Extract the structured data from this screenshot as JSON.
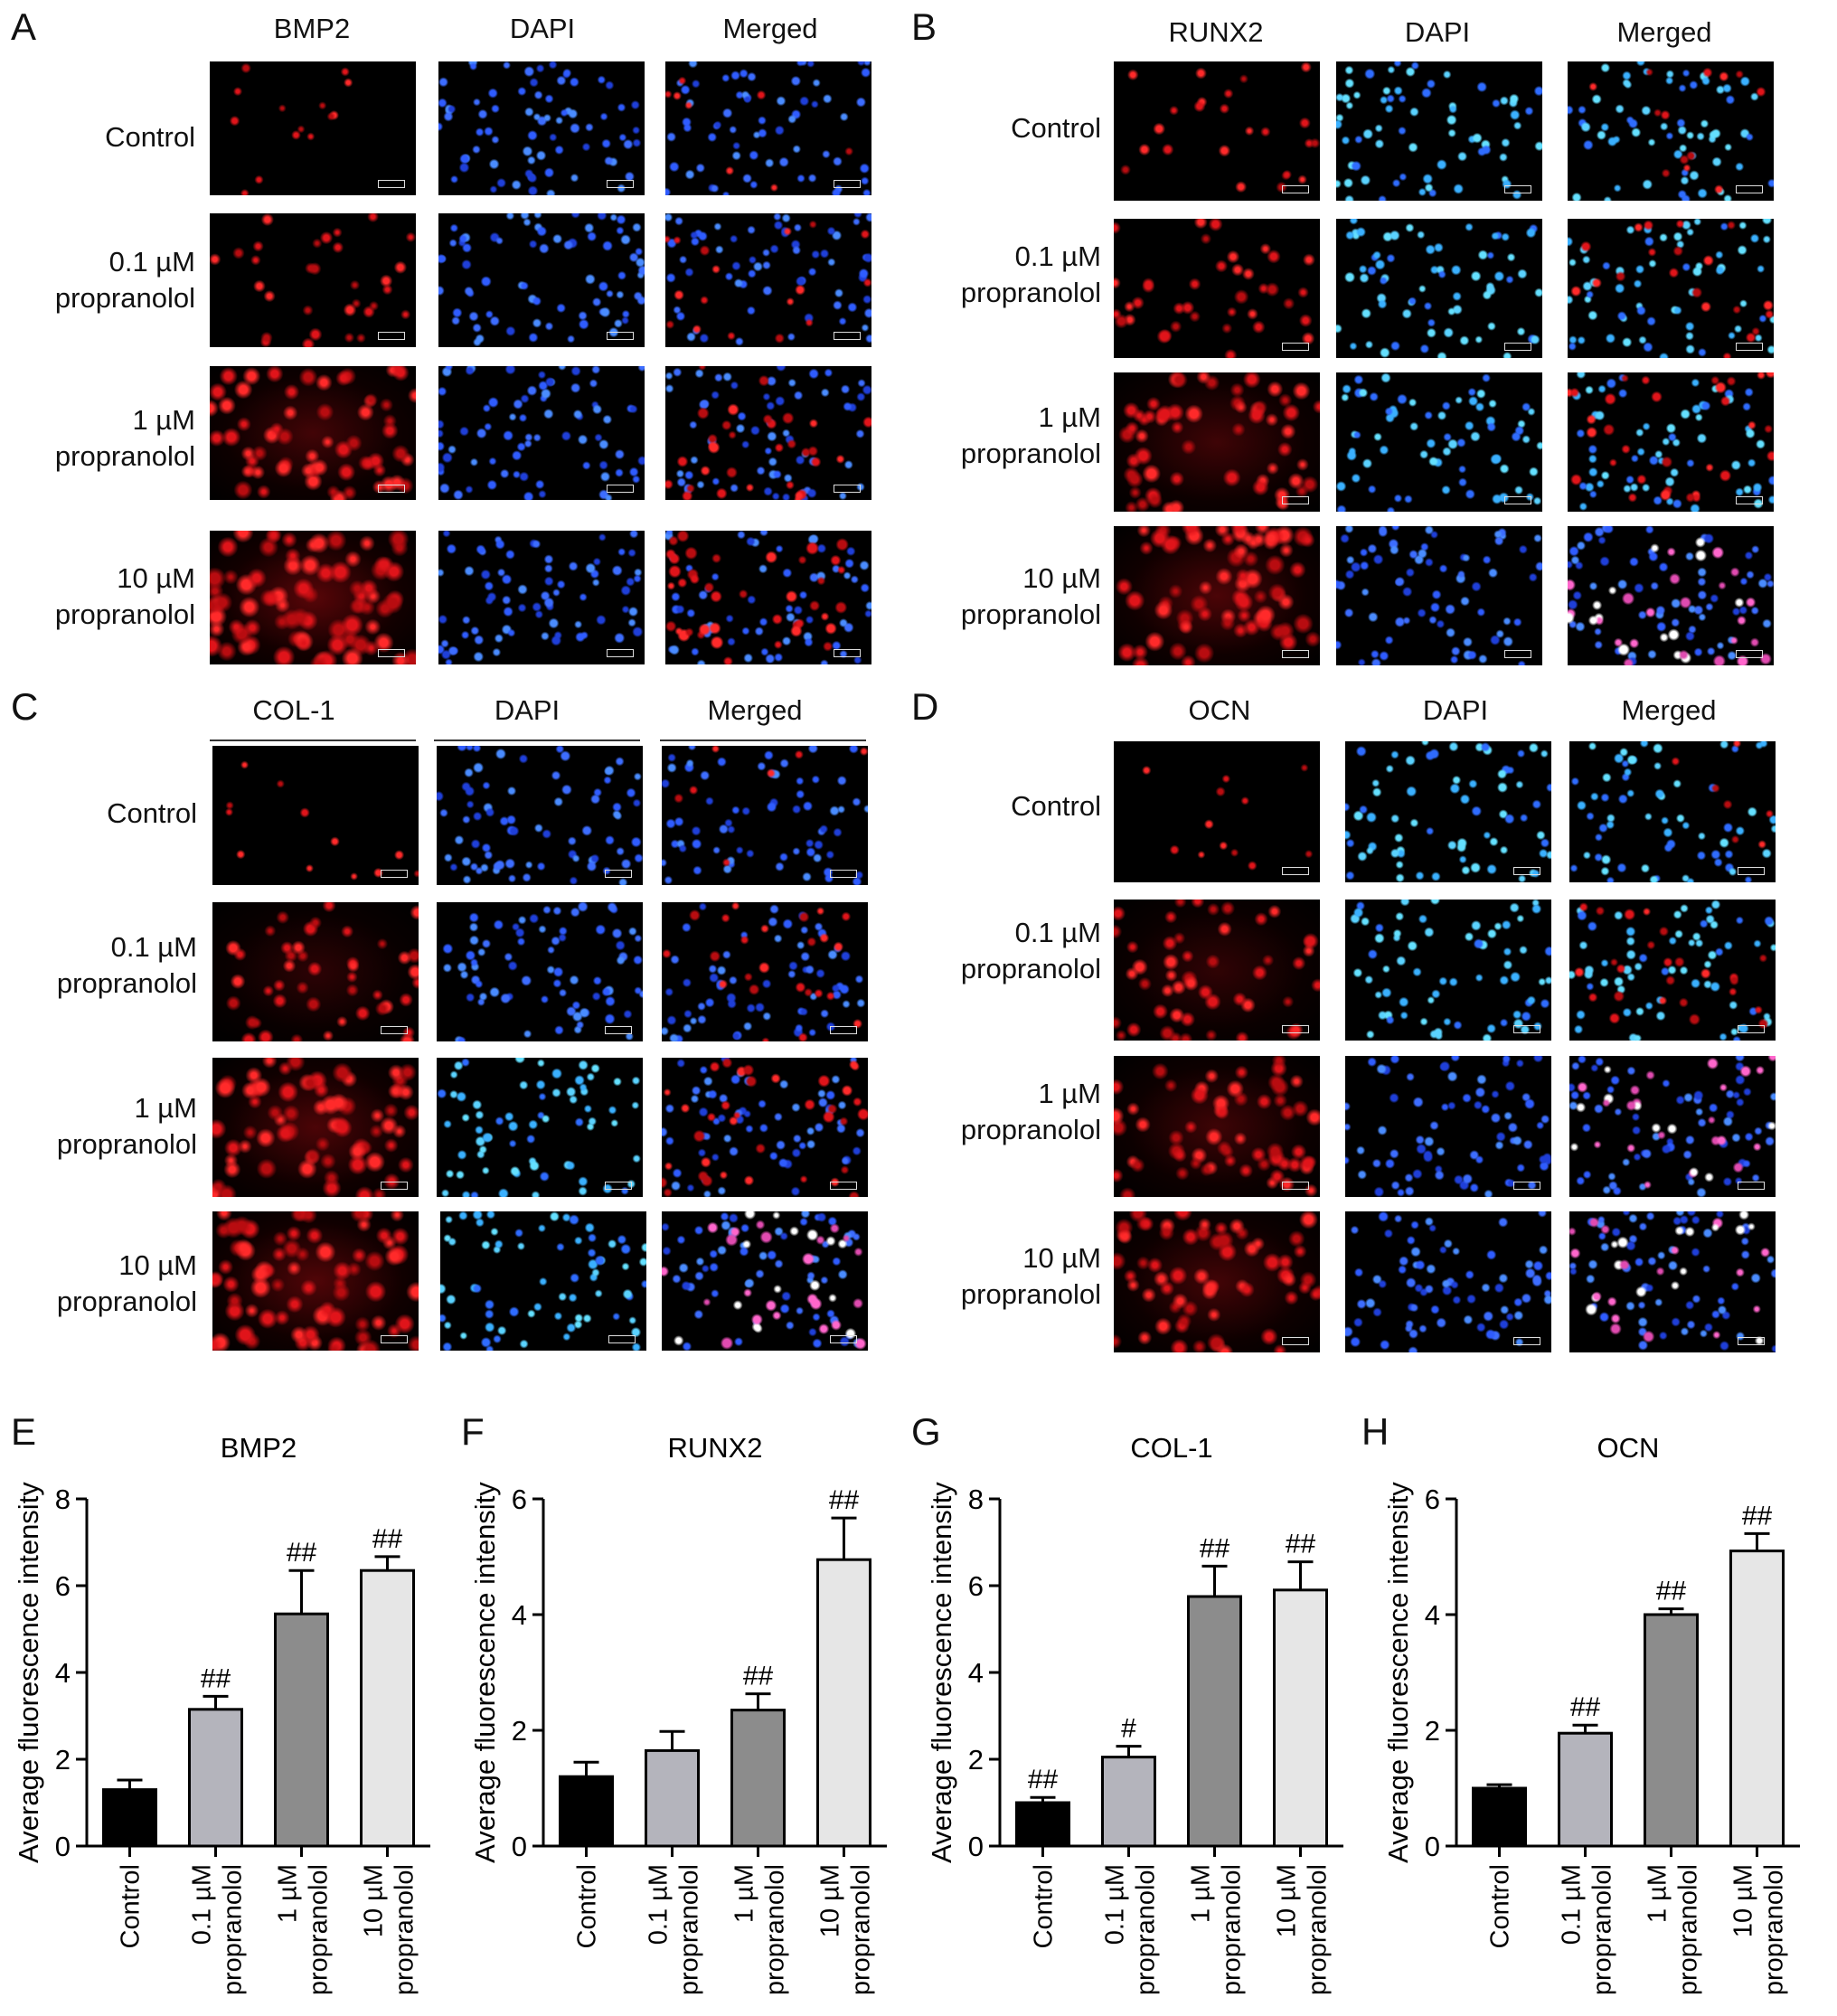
{
  "panel_letters": [
    "A",
    "B",
    "C",
    "D",
    "E",
    "F",
    "G",
    "H"
  ],
  "image_panels": [
    {
      "letter": "A",
      "columns": [
        "BMP2",
        "DAPI",
        "Merged"
      ]
    },
    {
      "letter": "B",
      "columns": [
        "RUNX2",
        "DAPI",
        "Merged"
      ]
    },
    {
      "letter": "C",
      "columns": [
        "COL-1",
        "DAPI",
        "Merged"
      ]
    },
    {
      "letter": "D",
      "columns": [
        "OCN",
        "DAPI",
        "Merged"
      ]
    }
  ],
  "row_labels": [
    {
      "line1": "Control",
      "line2": ""
    },
    {
      "line1": "0.1 µM",
      "line2": "propranolol"
    },
    {
      "line1": "1 µM",
      "line2": "propranolol"
    },
    {
      "line1": "10 µM",
      "line2": "propranolol"
    }
  ],
  "colors": {
    "red_stain": "#e0141a",
    "blue_stain": "#2f5cff",
    "cyan_nuclei": "#5ad2ff",
    "bar_control": "#000000",
    "bar_01": "#b4b4bc",
    "bar_1": "#8c8c8c",
    "bar_10": "#e6e6e6"
  },
  "chart_data": [
    {
      "type": "bar",
      "letter": "E",
      "title": "BMP2",
      "ylabel": "Average fluorescence intensity",
      "ylim": [
        0,
        8
      ],
      "yticks": [
        0,
        2,
        4,
        6,
        8
      ],
      "categories": [
        "Control",
        "0.1 µM propranolol",
        "1 µM propranolol",
        "10 µM propranolol"
      ],
      "values": [
        1.3,
        3.15,
        5.35,
        6.35
      ],
      "errors": [
        0.22,
        0.3,
        1.0,
        0.32
      ],
      "annotations": [
        "",
        "##",
        "##",
        "##"
      ]
    },
    {
      "type": "bar",
      "letter": "F",
      "title": "RUNX2",
      "ylabel": "Average fluorescence intensity",
      "ylim": [
        0,
        6
      ],
      "yticks": [
        0,
        2,
        4,
        6
      ],
      "categories": [
        "Control",
        "0.1 µM propranolol",
        "1 µM propranolol",
        "10 µM propranolol"
      ],
      "values": [
        1.2,
        1.65,
        2.35,
        4.95
      ],
      "errors": [
        0.25,
        0.33,
        0.28,
        0.72
      ],
      "annotations": [
        "",
        "",
        "##",
        "##"
      ]
    },
    {
      "type": "bar",
      "letter": "G",
      "title": "COL-1",
      "ylabel": "Average fluorescence intensity",
      "ylim": [
        0,
        8
      ],
      "yticks": [
        0,
        2,
        4,
        6,
        8
      ],
      "categories": [
        "Control",
        "0.1 µM propranolol",
        "1 µM propranolol",
        "10 µM propranolol"
      ],
      "values": [
        1.0,
        2.05,
        5.75,
        5.9
      ],
      "errors": [
        0.12,
        0.25,
        0.7,
        0.65
      ],
      "annotations": [
        "##",
        "#",
        "##",
        "##"
      ]
    },
    {
      "type": "bar",
      "letter": "H",
      "title": "OCN",
      "ylabel": "Average fluorescence intensity",
      "ylim": [
        0,
        6
      ],
      "yticks": [
        0,
        2,
        4,
        6
      ],
      "categories": [
        "Control",
        "0.1 µM propranolol",
        "1 µM propranolol",
        "10 µM propranolol"
      ],
      "values": [
        1.0,
        1.95,
        4.0,
        5.1
      ],
      "errors": [
        0.06,
        0.14,
        0.1,
        0.3
      ],
      "annotations": [
        "",
        "##",
        "##",
        "##"
      ]
    }
  ]
}
